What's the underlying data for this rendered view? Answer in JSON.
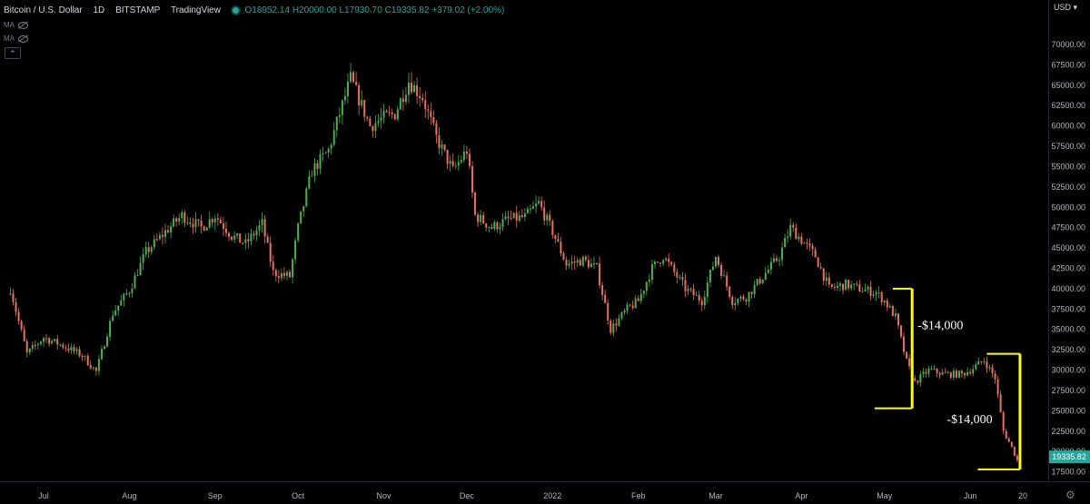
{
  "legend": {
    "symbol": "Bitcoin / U.S. Dollar",
    "interval": "1D",
    "exchange": "BITSTAMP",
    "source": "TradingView",
    "open": "O18952.14",
    "high": "H20000.00",
    "low": "L17930.70",
    "close": "C19335.82",
    "change": "+379.02 (+2.00%)"
  },
  "indicators": [
    "MA",
    "MA"
  ],
  "collapse_icon": "chevron-up-icon",
  "currency": "USD",
  "settings_icon": "gear-icon",
  "colors": {
    "up": "#26a69a",
    "candle_up": "#4caf50",
    "candle_down": "#e57360",
    "annotation": "#ffff00",
    "price_tag": "#26a69a"
  },
  "chart_data": {
    "type": "candlestick",
    "y_range": [
      15000,
      70000
    ],
    "y_ticks": [
      17500,
      20000,
      22500,
      25000,
      27500,
      30000,
      32500,
      35000,
      37500,
      40000,
      42500,
      45000,
      47500,
      50000,
      52500,
      55000,
      57500,
      60000,
      62500,
      65000,
      67500,
      70000
    ],
    "y_tick_labels": [
      "17500.00",
      "20000.00",
      "22500.00",
      "25000.00",
      "27500.00",
      "30000.00",
      "32500.00",
      "35000.00",
      "37500.00",
      "40000.00",
      "42500.00",
      "45000.00",
      "47500.00",
      "50000.00",
      "52500.00",
      "55000.00",
      "57500.00",
      "60000.00",
      "62500.00",
      "65000.00",
      "67500.00",
      "70000.00"
    ],
    "x_labels": [
      "Jul",
      "Aug",
      "Sep",
      "Oct",
      "Nov",
      "Dec",
      "2022",
      "Feb",
      "Mar",
      "Apr",
      "May",
      "Jun",
      "20"
    ],
    "x_dates": [
      "2021-07-01",
      "2021-08-01",
      "2021-09-01",
      "2021-10-01",
      "2021-11-01",
      "2021-12-01",
      "2022-01-01",
      "2022-02-01",
      "2022-03-01",
      "2022-04-01",
      "2022-05-01",
      "2022-06-01",
      "2022-06-20"
    ],
    "last_price": 19335.82,
    "last_price_label": "19335.82",
    "close_series": [
      [
        "2021-06-19",
        40000
      ],
      [
        "2021-06-25",
        32000
      ],
      [
        "2021-07-01",
        34000
      ],
      [
        "2021-07-08",
        33000
      ],
      [
        "2021-07-15",
        31800
      ],
      [
        "2021-07-20",
        29800
      ],
      [
        "2021-07-26",
        37000
      ],
      [
        "2021-08-01",
        39800
      ],
      [
        "2021-08-07",
        44500
      ],
      [
        "2021-08-14",
        47000
      ],
      [
        "2021-08-20",
        49000
      ],
      [
        "2021-08-27",
        47500
      ],
      [
        "2021-09-01",
        49000
      ],
      [
        "2021-09-07",
        46500
      ],
      [
        "2021-09-12",
        45500
      ],
      [
        "2021-09-18",
        48000
      ],
      [
        "2021-09-22",
        42000
      ],
      [
        "2021-09-28",
        41500
      ],
      [
        "2021-10-01",
        47500
      ],
      [
        "2021-10-06",
        54500
      ],
      [
        "2021-10-12",
        57000
      ],
      [
        "2021-10-16",
        61500
      ],
      [
        "2021-10-20",
        65800
      ],
      [
        "2021-10-27",
        60000
      ],
      [
        "2021-11-01",
        61000
      ],
      [
        "2021-11-05",
        61500
      ],
      [
        "2021-11-10",
        65500
      ],
      [
        "2021-11-15",
        63500
      ],
      [
        "2021-11-20",
        58500
      ],
      [
        "2021-11-26",
        54500
      ],
      [
        "2021-12-01",
        57000
      ],
      [
        "2021-12-04",
        49000
      ],
      [
        "2021-12-10",
        47500
      ],
      [
        "2021-12-16",
        48500
      ],
      [
        "2021-12-22",
        48800
      ],
      [
        "2021-12-27",
        50500
      ],
      [
        "2022-01-01",
        47000
      ],
      [
        "2022-01-06",
        43000
      ],
      [
        "2022-01-12",
        43500
      ],
      [
        "2022-01-17",
        42500
      ],
      [
        "2022-01-22",
        35000
      ],
      [
        "2022-01-28",
        37500
      ],
      [
        "2022-02-01",
        38500
      ],
      [
        "2022-02-06",
        42500
      ],
      [
        "2022-02-10",
        44000
      ],
      [
        "2022-02-14",
        42000
      ],
      [
        "2022-02-18",
        40000
      ],
      [
        "2022-02-24",
        38500
      ],
      [
        "2022-03-01",
        44000
      ],
      [
        "2022-03-07",
        38500
      ],
      [
        "2022-03-12",
        39000
      ],
      [
        "2022-03-18",
        41500
      ],
      [
        "2022-03-24",
        44000
      ],
      [
        "2022-03-28",
        47500
      ],
      [
        "2022-04-01",
        46000
      ],
      [
        "2022-04-06",
        44000
      ],
      [
        "2022-04-11",
        40000
      ],
      [
        "2022-04-17",
        40500
      ],
      [
        "2022-04-22",
        40000
      ],
      [
        "2022-04-28",
        39500
      ],
      [
        "2022-05-01",
        38500
      ],
      [
        "2022-05-05",
        36500
      ],
      [
        "2022-05-09",
        31000
      ],
      [
        "2022-05-12",
        28500
      ],
      [
        "2022-05-17",
        30000
      ],
      [
        "2022-05-23",
        29500
      ],
      [
        "2022-05-29",
        29500
      ],
      [
        "2022-06-01",
        30000
      ],
      [
        "2022-06-06",
        31200
      ],
      [
        "2022-06-10",
        29000
      ],
      [
        "2022-06-13",
        22500
      ],
      [
        "2022-06-16",
        20500
      ],
      [
        "2022-06-18",
        18900
      ],
      [
        "2022-06-19",
        19335.82
      ]
    ]
  },
  "annotations": [
    {
      "label": "-$14,000",
      "from_date": "2022-05-04",
      "to_date": "2022-05-11",
      "top": 40000,
      "bottom": 25300
    },
    {
      "label": "-$14,000",
      "from_date": "2022-06-07",
      "to_date": "2022-06-19",
      "top": 32000,
      "bottom": 17800
    }
  ]
}
